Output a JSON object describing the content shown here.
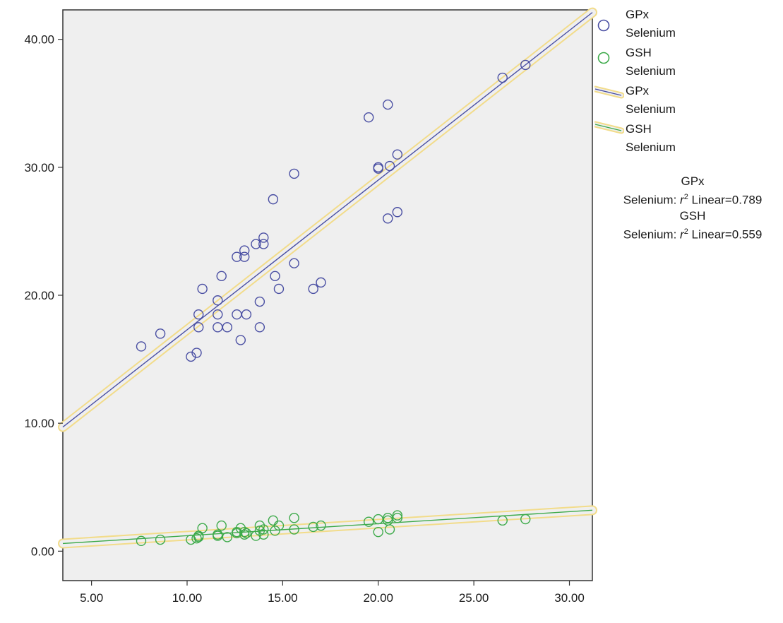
{
  "chart_data": {
    "type": "scatter",
    "xlabel": "",
    "ylabel": "",
    "xlim": [
      3.5,
      31.2
    ],
    "ylim": [
      -2.3,
      42.3
    ],
    "x_ticks": [
      {
        "value": 5,
        "label": "5.00"
      },
      {
        "value": 10,
        "label": "10.00"
      },
      {
        "value": 15,
        "label": "15.00"
      },
      {
        "value": 20,
        "label": "20.00"
      },
      {
        "value": 25,
        "label": "25.00"
      },
      {
        "value": 30,
        "label": "30.00"
      }
    ],
    "y_ticks": [
      {
        "value": 0,
        "label": "0.00"
      },
      {
        "value": 10,
        "label": "10.00"
      },
      {
        "value": 20,
        "label": "20.00"
      },
      {
        "value": 30,
        "label": "30.00"
      },
      {
        "value": 40,
        "label": "40.00"
      }
    ],
    "grid": false,
    "legend_position": "right",
    "series": [
      {
        "name": "GPx Selenium",
        "color": "#4a4fa3",
        "points": [
          [
            7.6,
            16.0
          ],
          [
            8.6,
            17.0
          ],
          [
            10.2,
            15.2
          ],
          [
            10.5,
            15.5
          ],
          [
            10.6,
            18.5
          ],
          [
            10.6,
            17.5
          ],
          [
            10.8,
            20.5
          ],
          [
            11.6,
            19.6
          ],
          [
            11.6,
            18.5
          ],
          [
            11.6,
            17.5
          ],
          [
            11.8,
            21.5
          ],
          [
            12.1,
            17.5
          ],
          [
            12.6,
            23.0
          ],
          [
            12.6,
            18.5
          ],
          [
            12.8,
            16.5
          ],
          [
            13.0,
            23.5
          ],
          [
            13.0,
            23.0
          ],
          [
            13.1,
            18.5
          ],
          [
            13.6,
            24.0
          ],
          [
            13.8,
            19.5
          ],
          [
            13.8,
            17.5
          ],
          [
            14.0,
            24.5
          ],
          [
            14.0,
            24.0
          ],
          [
            14.5,
            27.5
          ],
          [
            14.6,
            21.5
          ],
          [
            14.8,
            20.5
          ],
          [
            15.6,
            29.5
          ],
          [
            15.6,
            22.5
          ],
          [
            16.6,
            20.5
          ],
          [
            17.0,
            21.0
          ],
          [
            19.5,
            33.9
          ],
          [
            20.0,
            30.0
          ],
          [
            20.0,
            29.9
          ],
          [
            20.5,
            34.9
          ],
          [
            20.6,
            30.1
          ],
          [
            20.5,
            26.0
          ],
          [
            21.0,
            31.0
          ],
          [
            21.0,
            26.5
          ],
          [
            26.5,
            37.0
          ],
          [
            27.7,
            38.0
          ]
        ],
        "fit_line": {
          "x": [
            3.5,
            31.2
          ],
          "y": [
            9.7,
            42.1
          ]
        }
      },
      {
        "name": "GSH Selenium",
        "color": "#3daa4a",
        "points": [
          [
            7.6,
            0.8
          ],
          [
            8.6,
            0.9
          ],
          [
            10.2,
            0.9
          ],
          [
            10.5,
            1.0
          ],
          [
            10.6,
            1.2
          ],
          [
            10.6,
            1.1
          ],
          [
            10.8,
            1.8
          ],
          [
            11.6,
            1.2
          ],
          [
            11.6,
            1.3
          ],
          [
            11.8,
            2.0
          ],
          [
            12.1,
            1.1
          ],
          [
            12.6,
            1.4
          ],
          [
            12.6,
            1.5
          ],
          [
            12.8,
            1.8
          ],
          [
            13.0,
            1.3
          ],
          [
            13.0,
            1.5
          ],
          [
            13.1,
            1.4
          ],
          [
            13.6,
            1.2
          ],
          [
            13.8,
            1.6
          ],
          [
            13.8,
            2.0
          ],
          [
            14.0,
            1.3
          ],
          [
            14.0,
            1.7
          ],
          [
            14.5,
            2.4
          ],
          [
            14.6,
            1.6
          ],
          [
            14.8,
            2.0
          ],
          [
            15.6,
            2.6
          ],
          [
            15.6,
            1.7
          ],
          [
            16.6,
            1.9
          ],
          [
            17.0,
            2.0
          ],
          [
            19.5,
            2.3
          ],
          [
            20.0,
            2.5
          ],
          [
            20.0,
            1.5
          ],
          [
            20.5,
            2.6
          ],
          [
            20.6,
            1.7
          ],
          [
            20.5,
            2.4
          ],
          [
            21.0,
            2.8
          ],
          [
            21.0,
            2.6
          ],
          [
            26.5,
            2.4
          ],
          [
            27.7,
            2.5
          ]
        ],
        "fit_line": {
          "x": [
            3.5,
            31.2
          ],
          "y": [
            0.6,
            3.2
          ]
        }
      }
    ],
    "legend": [
      {
        "kind": "marker",
        "series": 0,
        "line1": "GPx",
        "line2": "Selenium"
      },
      {
        "kind": "marker",
        "series": 1,
        "line1": "GSH",
        "line2": "Selenium"
      },
      {
        "kind": "line",
        "series": 0,
        "line1": "GPx",
        "line2": "Selenium"
      },
      {
        "kind": "line",
        "series": 1,
        "line1": "GSH",
        "line2": "Selenium"
      }
    ],
    "r_squared": [
      {
        "line1": "GPx",
        "prefix": "Selenium: ",
        "r": "r",
        "sup": "2",
        "suffix": " Linear=0.789"
      },
      {
        "line1": "GSH",
        "prefix": "Selenium: ",
        "r": "r",
        "sup": "2",
        "suffix": " Linear=0.559"
      }
    ],
    "colors": {
      "plot_background": "#efefef",
      "fit_highlight": "#f2dc8a"
    }
  }
}
